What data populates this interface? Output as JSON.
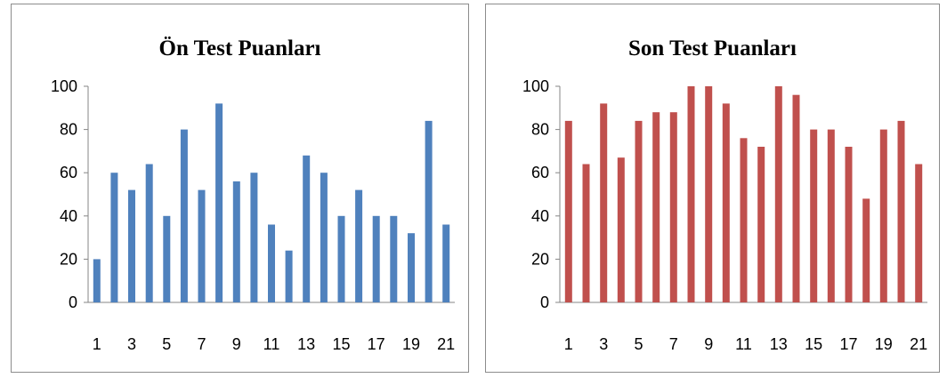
{
  "chart_data": [
    {
      "type": "bar",
      "title": "Ön Test Puanları",
      "xlabel": "",
      "ylabel": "",
      "ylim": [
        0,
        100
      ],
      "yticks": [
        0,
        20,
        40,
        60,
        80,
        100
      ],
      "categories": [
        "1",
        "2",
        "3",
        "4",
        "5",
        "6",
        "7",
        "8",
        "9",
        "10",
        "11",
        "12",
        "13",
        "14",
        "15",
        "16",
        "17",
        "18",
        "19",
        "20",
        "21"
      ],
      "xtick_labels": [
        "1",
        "3",
        "5",
        "7",
        "9",
        "11",
        "13",
        "15",
        "17",
        "19",
        "21"
      ],
      "values": [
        20,
        60,
        52,
        64,
        40,
        80,
        52,
        92,
        56,
        60,
        36,
        24,
        68,
        60,
        40,
        52,
        40,
        40,
        32,
        84,
        36
      ],
      "color": "#4f81bd",
      "grid": false,
      "legend": "none"
    },
    {
      "type": "bar",
      "title": "Son Test Puanları",
      "xlabel": "",
      "ylabel": "",
      "ylim": [
        0,
        100
      ],
      "yticks": [
        0,
        20,
        40,
        60,
        80,
        100
      ],
      "categories": [
        "1",
        "2",
        "3",
        "4",
        "5",
        "6",
        "7",
        "8",
        "9",
        "10",
        "11",
        "12",
        "13",
        "14",
        "15",
        "16",
        "17",
        "18",
        "19",
        "20",
        "21"
      ],
      "xtick_labels": [
        "1",
        "3",
        "5",
        "7",
        "9",
        "11",
        "13",
        "15",
        "17",
        "19",
        "21"
      ],
      "values": [
        84,
        64,
        92,
        67,
        84,
        88,
        88,
        100,
        100,
        92,
        76,
        72,
        100,
        96,
        80,
        80,
        72,
        48,
        80,
        84,
        64
      ],
      "color": "#c0504d",
      "grid": false,
      "legend": "none"
    }
  ]
}
